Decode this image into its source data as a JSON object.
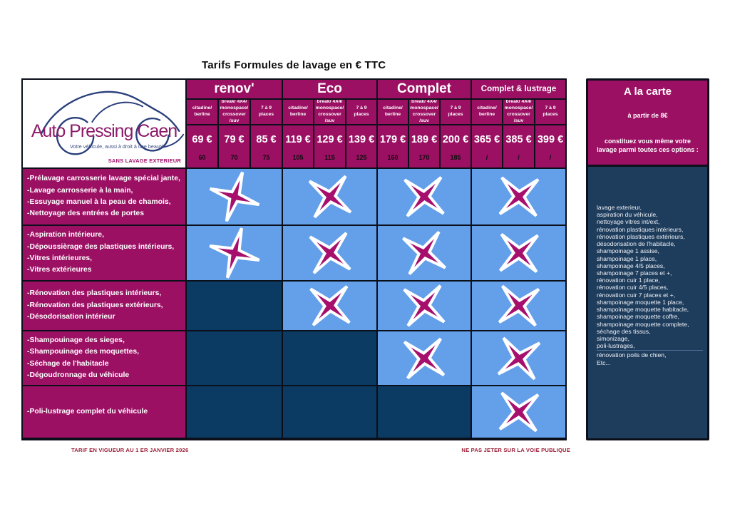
{
  "title": "Tarifs Formules de lavage en € TTC",
  "logo": {
    "brand": "Auto Pressing Caen",
    "tagline": "Votre véhicule, aussi à droit à une  beauté",
    "note": "SANS LAVAGE EXTERIEUR"
  },
  "colors": {
    "magenta": "#9b1063",
    "star": "#a60f6b",
    "cell_blue": "#63a0e9",
    "cell_navy": "#0b3a63",
    "sidebar_navy": "#1e3c5c",
    "footer_red": "#9c2038"
  },
  "formulas": [
    {
      "name": "renov'",
      "small": false,
      "types": [
        [
          "citadine/",
          "berline"
        ],
        [
          "break/ 4X4/",
          "monospace/",
          "crossover /suv"
        ],
        [
          "7 à 9",
          "places"
        ]
      ],
      "prices": [
        "69 €",
        "79 €",
        "85 €"
      ],
      "subprices": [
        "60",
        "70",
        "75"
      ]
    },
    {
      "name": "Eco",
      "small": false,
      "types": [
        [
          "citadine/",
          "berline"
        ],
        [
          "break/ 4X4/",
          "monospace/",
          "crossover /suv"
        ],
        [
          "7 à 9",
          "places"
        ]
      ],
      "prices": [
        "119 €",
        "129 €",
        "139 €"
      ],
      "subprices": [
        "105",
        "115",
        "125"
      ]
    },
    {
      "name": "Complet",
      "small": false,
      "types": [
        [
          "citadine/",
          "berline"
        ],
        [
          "break/ 4X4/",
          "monospace/",
          "crossover /suv"
        ],
        [
          "7 à 9",
          "places"
        ]
      ],
      "prices": [
        "179 €",
        "189 €",
        "200 €"
      ],
      "subprices": [
        "160",
        "170",
        "185"
      ]
    },
    {
      "name": "Complet & lustrage",
      "small": true,
      "types": [
        [
          "citadine/",
          "berline"
        ],
        [
          "break/ 4X4/",
          "monospace/",
          "crossover /suv"
        ],
        [
          "7 à 9",
          "places"
        ]
      ],
      "prices": [
        "365 €",
        "385 €",
        "399 €"
      ],
      "subprices": [
        "/",
        "/",
        "/"
      ]
    }
  ],
  "services": [
    {
      "lines": [
        "-Prélavage carrosserie lavage spécial jante,",
        "-Lavage carrosserie à la main,",
        "-Essuyage manuel à la peau de chamois,",
        "-Nettoyage des entrées de portes"
      ],
      "marks": [
        1,
        1,
        1,
        1
      ]
    },
    {
      "lines": [
        "-Aspiration intérieure,",
        "-Dépoussièrage des plastiques intérieurs,",
        "-Vitres intérieures,",
        "-Vitres extérieures"
      ],
      "marks": [
        1,
        1,
        1,
        1
      ]
    },
    {
      "lines": [
        "-Rénovation des plastiques intérieurs,",
        "-Rénovation des plastiques extérieurs,",
        "-Désodorisation intérieur"
      ],
      "marks": [
        0,
        1,
        1,
        1
      ]
    },
    {
      "lines": [
        "-Shampouinage des sieges,",
        "-Shampouinage des moquettes,",
        "-Séchage de l'habitacle",
        "-Dégoudronnage du véhicule"
      ],
      "marks": [
        0,
        0,
        1,
        1
      ]
    },
    {
      "lines": [
        "-Poli-lustrage complet du véhicule"
      ],
      "marks": [
        0,
        0,
        0,
        1
      ]
    }
  ],
  "sidebar": {
    "title": "A la carte",
    "from": "à partir de 8€",
    "desc": "constituez vous même votre lavage parmi toutes ces options :",
    "options": [
      "lavage exterieur,",
      "aspiration du véhicule,",
      "nettoyage vitres int/ext,",
      "rénovation plastiques intérieurs,",
      "rénovation plastiques extérieurs,",
      "désodorisation de l'habitacle,",
      "shampoinage 1 assise,",
      "shampoinage 1 place,",
      "shampoinage  4/5 places,",
      "shampoinage 7 places et +,",
      "rénovation cuir 1 place,",
      "rénovation cuir 4/5 places,",
      "rénovation cuir 7 places et +,",
      "shampoinage moquette 1 place, shampoinage moquette habitacle,",
      "shampoinage moquette coffre,",
      "shampoinage moquette complete,",
      "séchage des tissus,",
      "simonizage,",
      "poli-lustrages,",
      "rénovation poils de chien,",
      "Etc..."
    ],
    "divider_after_index": 18
  },
  "footer": {
    "left": "TARIF EN VIGUEUR AU 1 ER JANVIER 2026",
    "right": "NE PAS JETER SUR LA VOIE PUBLIQUE"
  }
}
